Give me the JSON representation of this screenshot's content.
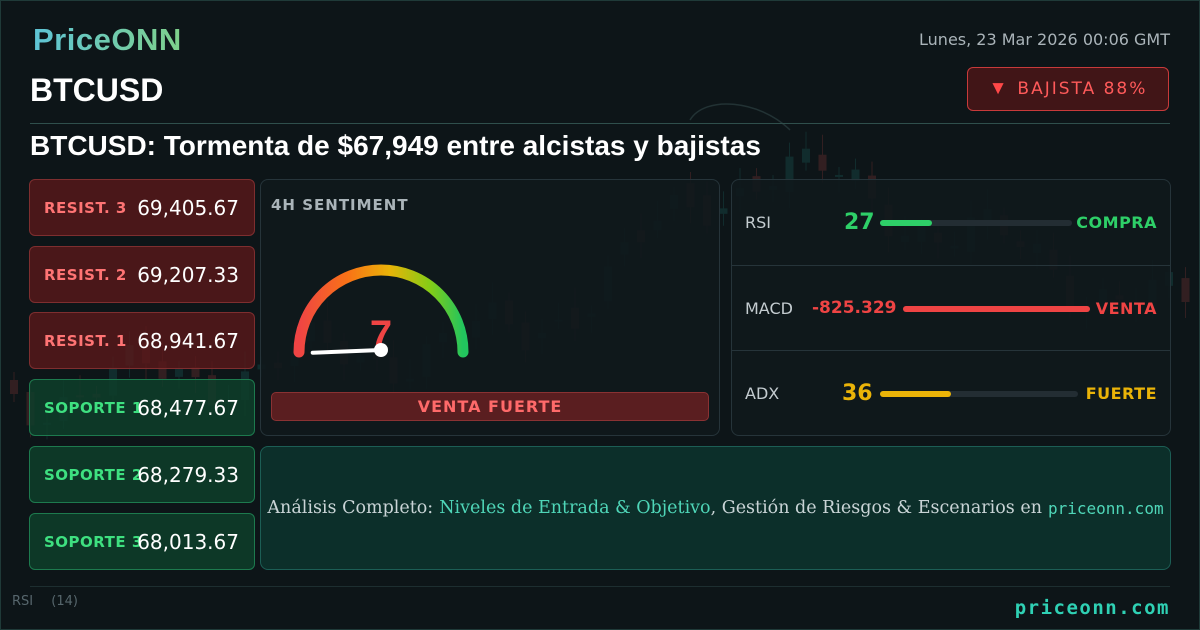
{
  "brand": {
    "logo": "PriceONN",
    "footer_url": "priceonn.com"
  },
  "header": {
    "datetime": "Lunes, 23 Mar 2026 00:06 GMT",
    "symbol": "BTCUSD",
    "badge": {
      "icon": "down-triangle-icon",
      "glyph": "▼",
      "label": "BAJISTA 88%"
    }
  },
  "headline": "BTCUSD: Tormenta de $67,949 entre alcistas y bajistas",
  "levels": [
    {
      "label": "RESIST. 3",
      "value": "69,405.67",
      "kind": "resistance"
    },
    {
      "label": "RESIST. 2",
      "value": "69,207.33",
      "kind": "resistance"
    },
    {
      "label": "RESIST. 1",
      "value": "68,941.67",
      "kind": "resistance"
    },
    {
      "label": "SOPORTE 1",
      "value": "68,477.67",
      "kind": "support"
    },
    {
      "label": "SOPORTE 2",
      "value": "68,279.33",
      "kind": "support"
    },
    {
      "label": "SOPORTE 3",
      "value": "68,013.67",
      "kind": "support"
    }
  ],
  "sentiment": {
    "title": "4H SENTIMENT",
    "score": "7",
    "score_max": 100,
    "verdict": "VENTA FUERTE"
  },
  "indicators": [
    {
      "name": "RSI",
      "value": "27",
      "signal": "COMPRA",
      "level": 0.27,
      "color": "#2ecf68"
    },
    {
      "name": "MACD",
      "value": "-825.329",
      "signal": "VENTA",
      "level": 1.0,
      "color": "#ef4444"
    },
    {
      "name": "ADX",
      "value": "36",
      "signal": "FUERTE",
      "level": 0.36,
      "color": "#eab308"
    }
  ],
  "promo": {
    "lead": "Análisis Completo:",
    "highlight": "Niveles de Entrada & Objetivo",
    "rest": ", Gestión de Riesgos & Escenarios en",
    "site": "priceonn.com"
  },
  "background": {
    "rsi_label": "RSI",
    "rsi_period": "(14)"
  },
  "colors": {
    "bearish": "#ff4848",
    "bullish": "#3ee080",
    "accent": "#2fd1b4",
    "warning": "#eab308"
  }
}
